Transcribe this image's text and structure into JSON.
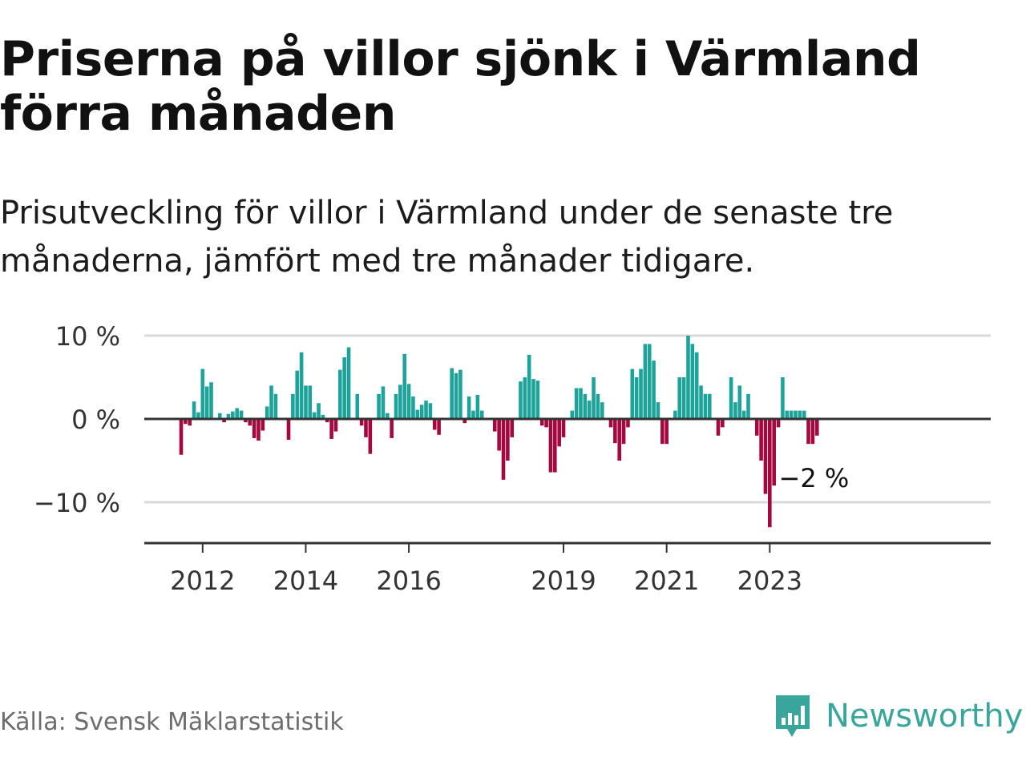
{
  "title": "Priserna på villor sjönk i Värmland förra månaden",
  "subtitle": "Prisutveckling för villor i Värmland under de senaste tre månaderna, jämfört med tre månader tidigare.",
  "source": "Källa: Svensk Mäklarstatistik",
  "brand": {
    "name": "Newsworthy",
    "icon": "bar-chart-speech-bubble-icon",
    "color": "#3aa59a"
  },
  "colors": {
    "positive": "#1ea39a",
    "negative": "#a3093f",
    "grid": "#d9d9d9",
    "zero": "#333333"
  },
  "chart_data": {
    "type": "bar",
    "title": "Priserna på villor sjönk i Värmland förra månaden",
    "subtitle": "Prisutveckling för villor i Värmland under de senaste tre månaderna, jämfört med tre månader tidigare.",
    "unit": "%",
    "ylim": [
      -15,
      10
    ],
    "yticks": [
      {
        "value": 10,
        "label": "10 %"
      },
      {
        "value": 0,
        "label": "0 %"
      },
      {
        "value": -10,
        "label": "−10 %"
      }
    ],
    "xticks": [
      {
        "value": "2012-01",
        "label": "2012"
      },
      {
        "value": "2014-01",
        "label": "2014"
      },
      {
        "value": "2016-01",
        "label": "2016"
      },
      {
        "value": "2019-01",
        "label": "2019"
      },
      {
        "value": "2021-01",
        "label": "2021"
      },
      {
        "value": "2023-01",
        "label": "2023"
      }
    ],
    "grid": true,
    "annotation": {
      "x": "2023-12",
      "label": "−2 %"
    },
    "series": [
      {
        "x": "2011-08",
        "value": -4.3
      },
      {
        "x": "2011-09",
        "value": -0.6
      },
      {
        "x": "2011-10",
        "value": -0.8
      },
      {
        "x": "2011-11",
        "value": 2.1
      },
      {
        "x": "2011-12",
        "value": 0.8
      },
      {
        "x": "2012-01",
        "value": 6.0
      },
      {
        "x": "2012-02",
        "value": 3.9
      },
      {
        "x": "2012-03",
        "value": 4.4
      },
      {
        "x": "2012-04",
        "value": 0
      },
      {
        "x": "2012-05",
        "value": 0.7
      },
      {
        "x": "2012-06",
        "value": -0.4
      },
      {
        "x": "2012-07",
        "value": 0.6
      },
      {
        "x": "2012-08",
        "value": 0.9
      },
      {
        "x": "2012-09",
        "value": 1.3
      },
      {
        "x": "2012-10",
        "value": 1.0
      },
      {
        "x": "2012-11",
        "value": -0.4
      },
      {
        "x": "2012-12",
        "value": -0.8
      },
      {
        "x": "2013-01",
        "value": -2.3
      },
      {
        "x": "2013-02",
        "value": -2.6
      },
      {
        "x": "2013-03",
        "value": -1.4
      },
      {
        "x": "2013-04",
        "value": 1.5
      },
      {
        "x": "2013-05",
        "value": 4.0
      },
      {
        "x": "2013-06",
        "value": 3.0
      },
      {
        "x": "2013-07",
        "value": 0
      },
      {
        "x": "2013-08",
        "value": 0
      },
      {
        "x": "2013-09",
        "value": -2.5
      },
      {
        "x": "2013-10",
        "value": 3.0
      },
      {
        "x": "2013-11",
        "value": 5.8
      },
      {
        "x": "2013-12",
        "value": 8.0
      },
      {
        "x": "2014-01",
        "value": 4.0
      },
      {
        "x": "2014-02",
        "value": 4.0
      },
      {
        "x": "2014-03",
        "value": 0.8
      },
      {
        "x": "2014-04",
        "value": 1.9
      },
      {
        "x": "2014-05",
        "value": 0.5
      },
      {
        "x": "2014-06",
        "value": -0.4
      },
      {
        "x": "2014-07",
        "value": -2.4
      },
      {
        "x": "2014-08",
        "value": -1.5
      },
      {
        "x": "2014-09",
        "value": 5.9
      },
      {
        "x": "2014-10",
        "value": 7.4
      },
      {
        "x": "2014-11",
        "value": 8.6
      },
      {
        "x": "2014-12",
        "value": 0
      },
      {
        "x": "2015-01",
        "value": 3.0
      },
      {
        "x": "2015-02",
        "value": -0.8
      },
      {
        "x": "2015-03",
        "value": -2.2
      },
      {
        "x": "2015-04",
        "value": -4.2
      },
      {
        "x": "2015-05",
        "value": 0
      },
      {
        "x": "2015-06",
        "value": 3.0
      },
      {
        "x": "2015-07",
        "value": 3.9
      },
      {
        "x": "2015-08",
        "value": 0.7
      },
      {
        "x": "2015-09",
        "value": -2.3
      },
      {
        "x": "2015-10",
        "value": 3.0
      },
      {
        "x": "2015-11",
        "value": 4.1
      },
      {
        "x": "2015-12",
        "value": 7.8
      },
      {
        "x": "2016-01",
        "value": 4.2
      },
      {
        "x": "2016-02",
        "value": 2.7
      },
      {
        "x": "2016-03",
        "value": 1.1
      },
      {
        "x": "2016-04",
        "value": 1.7
      },
      {
        "x": "2016-05",
        "value": 2.2
      },
      {
        "x": "2016-06",
        "value": 1.9
      },
      {
        "x": "2016-07",
        "value": -1.3
      },
      {
        "x": "2016-08",
        "value": -1.9
      },
      {
        "x": "2016-09",
        "value": 0
      },
      {
        "x": "2016-10",
        "value": 0
      },
      {
        "x": "2016-11",
        "value": 6.1
      },
      {
        "x": "2016-12",
        "value": 5.5
      },
      {
        "x": "2017-01",
        "value": 5.9
      },
      {
        "x": "2017-02",
        "value": -0.5
      },
      {
        "x": "2017-03",
        "value": 2.7
      },
      {
        "x": "2017-04",
        "value": 1.0
      },
      {
        "x": "2017-05",
        "value": 2.9
      },
      {
        "x": "2017-06",
        "value": 1.0
      },
      {
        "x": "2017-07",
        "value": 0
      },
      {
        "x": "2017-08",
        "value": 0
      },
      {
        "x": "2017-09",
        "value": -1.5
      },
      {
        "x": "2017-10",
        "value": -3.8
      },
      {
        "x": "2017-11",
        "value": -7.3
      },
      {
        "x": "2017-12",
        "value": -5.0
      },
      {
        "x": "2018-01",
        "value": -2.2
      },
      {
        "x": "2018-02",
        "value": 0
      },
      {
        "x": "2018-03",
        "value": 4.5
      },
      {
        "x": "2018-04",
        "value": 5.0
      },
      {
        "x": "2018-05",
        "value": 7.7
      },
      {
        "x": "2018-06",
        "value": 4.8
      },
      {
        "x": "2018-07",
        "value": 4.6
      },
      {
        "x": "2018-08",
        "value": -0.8
      },
      {
        "x": "2018-09",
        "value": -1.0
      },
      {
        "x": "2018-10",
        "value": -6.4
      },
      {
        "x": "2018-11",
        "value": -6.4
      },
      {
        "x": "2018-12",
        "value": -3.3
      },
      {
        "x": "2019-01",
        "value": -2.2
      },
      {
        "x": "2019-02",
        "value": 0
      },
      {
        "x": "2019-03",
        "value": 1.0
      },
      {
        "x": "2019-04",
        "value": 3.7
      },
      {
        "x": "2019-05",
        "value": 3.7
      },
      {
        "x": "2019-06",
        "value": 3.0
      },
      {
        "x": "2019-07",
        "value": 2.2
      },
      {
        "x": "2019-08",
        "value": 5.0
      },
      {
        "x": "2019-09",
        "value": 3.0
      },
      {
        "x": "2019-10",
        "value": 2.0
      },
      {
        "x": "2019-11",
        "value": 0
      },
      {
        "x": "2019-12",
        "value": -1.0
      },
      {
        "x": "2020-01",
        "value": -2.9
      },
      {
        "x": "2020-02",
        "value": -5.0
      },
      {
        "x": "2020-03",
        "value": -3.0
      },
      {
        "x": "2020-04",
        "value": -1.0
      },
      {
        "x": "2020-05",
        "value": 6.0
      },
      {
        "x": "2020-06",
        "value": 5.0
      },
      {
        "x": "2020-07",
        "value": 6.0
      },
      {
        "x": "2020-08",
        "value": 9.0
      },
      {
        "x": "2020-09",
        "value": 9.0
      },
      {
        "x": "2020-10",
        "value": 7.0
      },
      {
        "x": "2020-11",
        "value": 2.0
      },
      {
        "x": "2020-12",
        "value": -3.0
      },
      {
        "x": "2021-01",
        "value": -3.0
      },
      {
        "x": "2021-02",
        "value": 0
      },
      {
        "x": "2021-03",
        "value": 1.0
      },
      {
        "x": "2021-04",
        "value": 5.0
      },
      {
        "x": "2021-05",
        "value": 5.0
      },
      {
        "x": "2021-06",
        "value": 10.0
      },
      {
        "x": "2021-07",
        "value": 9.0
      },
      {
        "x": "2021-08",
        "value": 8.0
      },
      {
        "x": "2021-09",
        "value": 4.0
      },
      {
        "x": "2021-10",
        "value": 3.0
      },
      {
        "x": "2021-11",
        "value": 3.0
      },
      {
        "x": "2021-12",
        "value": 0
      },
      {
        "x": "2022-01",
        "value": -2.0
      },
      {
        "x": "2022-02",
        "value": -1.0
      },
      {
        "x": "2022-03",
        "value": 0
      },
      {
        "x": "2022-04",
        "value": 5.0
      },
      {
        "x": "2022-05",
        "value": 2.0
      },
      {
        "x": "2022-06",
        "value": 4.0
      },
      {
        "x": "2022-07",
        "value": 1.0
      },
      {
        "x": "2022-08",
        "value": 3.0
      },
      {
        "x": "2022-09",
        "value": 0
      },
      {
        "x": "2022-10",
        "value": -2.0
      },
      {
        "x": "2022-11",
        "value": -5.0
      },
      {
        "x": "2022-12",
        "value": -9.0
      },
      {
        "x": "2023-01",
        "value": -13.0
      },
      {
        "x": "2023-02",
        "value": -8.0
      },
      {
        "x": "2023-03",
        "value": -1.0
      },
      {
        "x": "2023-04",
        "value": 5.0
      },
      {
        "x": "2023-05",
        "value": 1.0
      },
      {
        "x": "2023-06",
        "value": 1.0
      },
      {
        "x": "2023-07",
        "value": 1.0
      },
      {
        "x": "2023-08",
        "value": 1.0
      },
      {
        "x": "2023-09",
        "value": 1.0
      },
      {
        "x": "2023-10",
        "value": -3.0
      },
      {
        "x": "2023-11",
        "value": -3.0
      },
      {
        "x": "2023-12",
        "value": -2.0
      }
    ]
  }
}
